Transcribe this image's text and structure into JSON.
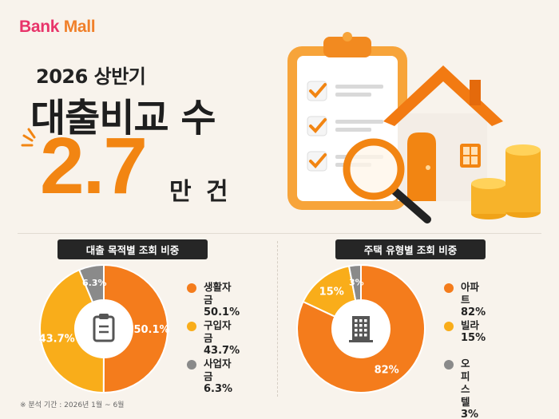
{
  "brand": {
    "part1": "Bank",
    "part2": " Mall"
  },
  "headline": {
    "subtitle": "2026 상반기",
    "title": "대출비교 수",
    "value": "2.7",
    "unit": "만 건"
  },
  "colors": {
    "orange": "#f47c1c",
    "yellow": "#f9ad1a",
    "gray": "#8a8a8a",
    "accent": "#f28512"
  },
  "chart_data": [
    {
      "type": "pie",
      "title": "대출 목적별 조회 비중",
      "categories": [
        "생활자금",
        "구입자금",
        "사업자금"
      ],
      "values": [
        50.1,
        43.7,
        6.3
      ],
      "labels": [
        "50.1%",
        "43.7%",
        "6.3%"
      ],
      "colors": [
        "#f47c1c",
        "#f9ad1a",
        "#8a8a8a"
      ],
      "center_icon": "clipboard-icon"
    },
    {
      "type": "pie",
      "title": "주택 유형별 조회 비중",
      "categories": [
        "아파트",
        "빌라",
        "오피스텔"
      ],
      "values": [
        82,
        15,
        3
      ],
      "labels": [
        "82%",
        "15%",
        "3%"
      ],
      "colors": [
        "#f47c1c",
        "#f9ad1a",
        "#8a8a8a"
      ],
      "center_icon": "building-icon"
    }
  ],
  "footnote": "※ 분석 기간 : 2026년 1월 ~ 6월"
}
